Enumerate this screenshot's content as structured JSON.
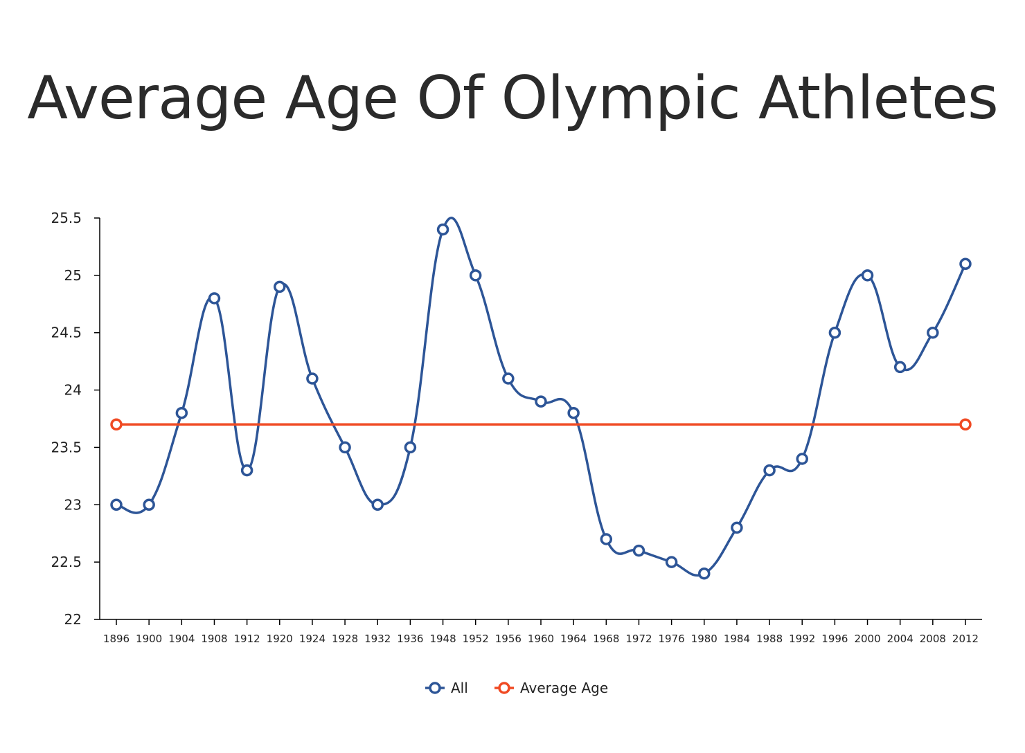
{
  "chart_data": {
    "type": "line",
    "title": "Average Age Of Olympic Athletes",
    "xlabel": "",
    "ylabel": "",
    "categories": [
      "1896",
      "1900",
      "1904",
      "1908",
      "1912",
      "1920",
      "1924",
      "1928",
      "1932",
      "1936",
      "1948",
      "1952",
      "1956",
      "1960",
      "1964",
      "1968",
      "1972",
      "1976",
      "1980",
      "1984",
      "1988",
      "1992",
      "1996",
      "2000",
      "2004",
      "2008",
      "2012"
    ],
    "ylim": [
      22,
      25.5
    ],
    "yticks": [
      "22",
      "22.5",
      "23",
      "23.5",
      "24",
      "24.5",
      "25",
      "25.5"
    ],
    "grid": false,
    "legend_position": "bottom",
    "series": [
      {
        "name": "All",
        "color": "#2d5597",
        "smooth": true,
        "values": [
          23,
          23,
          23.8,
          24.8,
          23.3,
          24.9,
          24.1,
          23.5,
          23,
          23.5,
          25.4,
          25,
          24.1,
          23.9,
          23.8,
          22.7,
          22.6,
          22.5,
          22.4,
          22.8,
          23.3,
          23.4,
          24.5,
          25,
          24.2,
          24.5,
          25.1
        ]
      },
      {
        "name": "Average Age",
        "color": "#f04a23",
        "smooth": false,
        "points": [
          {
            "x": "1896",
            "y": 23.7
          },
          {
            "x": "2012",
            "y": 23.7
          }
        ]
      }
    ]
  }
}
